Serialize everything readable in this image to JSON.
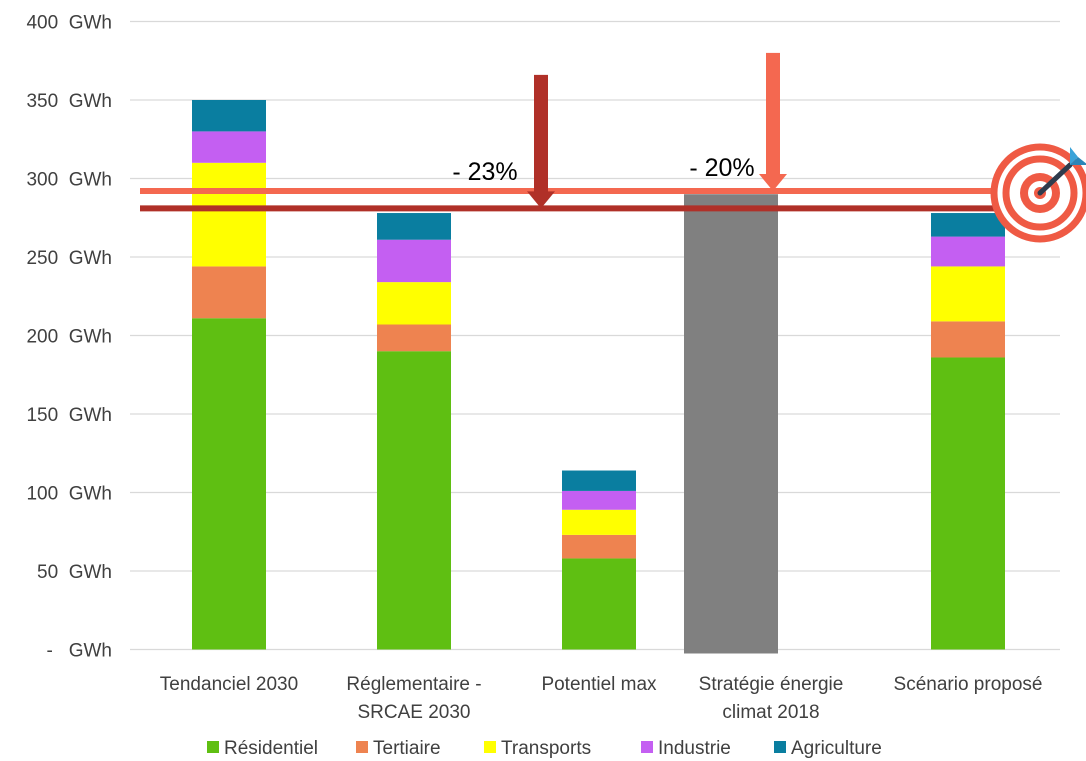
{
  "chart_data": {
    "type": "bar",
    "stacked": true,
    "unit": "GWh",
    "ylim": [
      0,
      400
    ],
    "yticks": [
      {
        "value": 0,
        "label": "-   GWh"
      },
      {
        "value": 50,
        "label": "50  GWh"
      },
      {
        "value": 100,
        "label": "100  GWh"
      },
      {
        "value": 150,
        "label": "150  GWh"
      },
      {
        "value": 200,
        "label": "200  GWh"
      },
      {
        "value": 250,
        "label": "250  GWh"
      },
      {
        "value": 300,
        "label": "300  GWh"
      },
      {
        "value": 350,
        "label": "350  GWh"
      },
      {
        "value": 400,
        "label": "400  GWh"
      }
    ],
    "categories": [
      [
        "Tendanciel 2030"
      ],
      [
        "Réglementaire -",
        "SRCAE 2030"
      ],
      [
        "Potentiel max"
      ],
      [
        "Stratégie énergie",
        "climat 2018"
      ],
      [
        "Scénario proposé"
      ]
    ],
    "series": [
      {
        "name": "Résidentiel",
        "color": "#5fbf12",
        "values": [
          211,
          190,
          58,
          null,
          186
        ]
      },
      {
        "name": "Tertiaire",
        "color": "#ee8350",
        "values": [
          33,
          17,
          15,
          null,
          23
        ]
      },
      {
        "name": "Transports",
        "color": "#ffff00",
        "values": [
          66,
          27,
          16,
          null,
          35
        ]
      },
      {
        "name": "Industrie",
        "color": "#c45ff2",
        "values": [
          20,
          27,
          12,
          null,
          19
        ]
      },
      {
        "name": "Agriculture",
        "color": "#0a7ea0",
        "values": [
          20,
          17,
          13,
          null,
          15
        ]
      }
    ],
    "total_bars": [
      {
        "category_index": 3,
        "value": 290,
        "color": "#808080"
      }
    ],
    "reference_lines": [
      {
        "value": 292,
        "color": "#f46850"
      },
      {
        "value": 281,
        "color": "#b03028"
      }
    ],
    "annotations": [
      {
        "text": "- 23%",
        "arrow_color": "#b03028",
        "arrow_from": 366,
        "arrow_to": 281
      },
      {
        "text": "- 20%",
        "arrow_color": "#f46850",
        "arrow_from": 380,
        "arrow_to": 292
      }
    ],
    "grid": true,
    "legend_position": "bottom",
    "target_icon": "target-icon"
  }
}
